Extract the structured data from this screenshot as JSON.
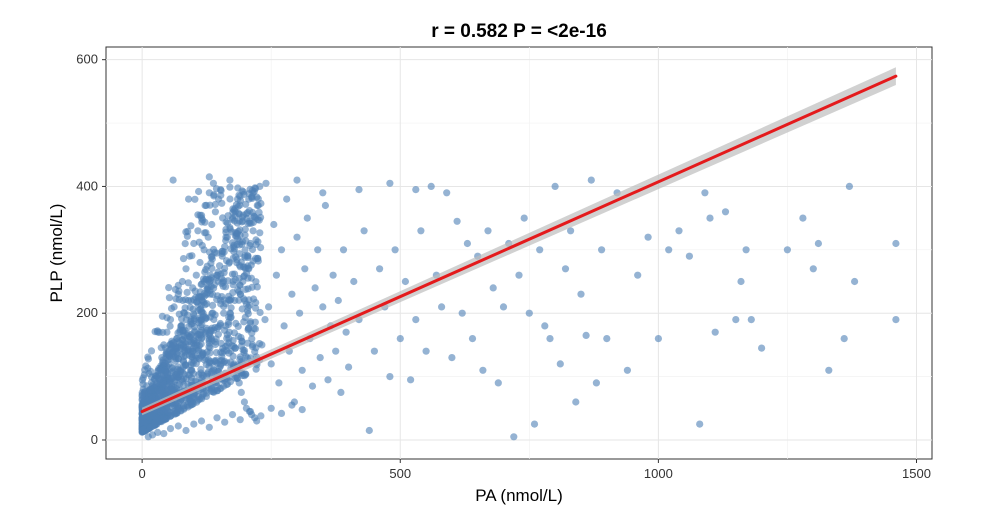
{
  "chart_data": {
    "type": "scatter",
    "title": "r = 0.582 P = <2e-16",
    "xlabel": "PA (nmol/L)",
    "ylabel": "PLP (nmol/L)",
    "xlim": [
      -70,
      1530
    ],
    "ylim": [
      -30,
      620
    ],
    "xticks": [
      0,
      500,
      1000,
      1500
    ],
    "yticks": [
      0,
      200,
      400,
      600
    ],
    "grid": true,
    "point_color": "#4F81B5",
    "line_color": "#E41A1C",
    "band_color": "#BDBDBD",
    "regression": {
      "x": [
        0,
        1460
      ],
      "y": [
        45,
        574
      ],
      "band_halfwidth": [
        6,
        14
      ]
    },
    "points": [
      [
        5,
        15
      ],
      [
        8,
        22
      ],
      [
        10,
        30
      ],
      [
        12,
        18
      ],
      [
        15,
        40
      ],
      [
        18,
        55
      ],
      [
        20,
        28
      ],
      [
        22,
        70
      ],
      [
        25,
        35
      ],
      [
        28,
        90
      ],
      [
        30,
        60
      ],
      [
        32,
        110
      ],
      [
        35,
        45
      ],
      [
        38,
        130
      ],
      [
        40,
        80
      ],
      [
        42,
        150
      ],
      [
        45,
        100
      ],
      [
        48,
        170
      ],
      [
        50,
        65
      ],
      [
        52,
        120
      ],
      [
        55,
        190
      ],
      [
        58,
        85
      ],
      [
        60,
        140
      ],
      [
        62,
        210
      ],
      [
        65,
        95
      ],
      [
        68,
        160
      ],
      [
        70,
        230
      ],
      [
        72,
        110
      ],
      [
        75,
        180
      ],
      [
        78,
        250
      ],
      [
        80,
        125
      ],
      [
        82,
        200
      ],
      [
        85,
        270
      ],
      [
        88,
        140
      ],
      [
        90,
        220
      ],
      [
        92,
        290
      ],
      [
        95,
        155
      ],
      [
        98,
        240
      ],
      [
        100,
        310
      ],
      [
        102,
        170
      ],
      [
        105,
        260
      ],
      [
        108,
        330
      ],
      [
        110,
        185
      ],
      [
        112,
        280
      ],
      [
        115,
        350
      ],
      [
        118,
        200
      ],
      [
        120,
        300
      ],
      [
        122,
        370
      ],
      [
        125,
        215
      ],
      [
        128,
        320
      ],
      [
        130,
        390
      ],
      [
        132,
        230
      ],
      [
        135,
        340
      ],
      [
        138,
        405
      ],
      [
        140,
        245
      ],
      [
        142,
        360
      ],
      [
        145,
        260
      ],
      [
        148,
        380
      ],
      [
        150,
        275
      ],
      [
        152,
        395
      ],
      [
        155,
        290
      ],
      [
        158,
        200
      ],
      [
        160,
        305
      ],
      [
        162,
        180
      ],
      [
        165,
        320
      ],
      [
        168,
        160
      ],
      [
        170,
        335
      ],
      [
        172,
        140
      ],
      [
        175,
        350
      ],
      [
        178,
        120
      ],
      [
        180,
        365
      ],
      [
        182,
        100
      ],
      [
        185,
        380
      ],
      [
        188,
        90
      ],
      [
        190,
        230
      ],
      [
        192,
        75
      ],
      [
        195,
        250
      ],
      [
        198,
        60
      ],
      [
        200,
        270
      ],
      [
        202,
        50
      ],
      [
        205,
        290
      ],
      [
        208,
        45
      ],
      [
        210,
        310
      ],
      [
        212,
        40
      ],
      [
        215,
        330
      ],
      [
        218,
        35
      ],
      [
        220,
        350
      ],
      [
        222,
        30
      ],
      [
        225,
        370
      ],
      [
        228,
        400
      ],
      [
        232,
        150
      ],
      [
        238,
        190
      ],
      [
        245,
        210
      ],
      [
        250,
        120
      ],
      [
        255,
        340
      ],
      [
        260,
        260
      ],
      [
        265,
        90
      ],
      [
        270,
        300
      ],
      [
        275,
        180
      ],
      [
        280,
        380
      ],
      [
        285,
        140
      ],
      [
        290,
        230
      ],
      [
        295,
        60
      ],
      [
        300,
        320
      ],
      [
        305,
        200
      ],
      [
        310,
        110
      ],
      [
        315,
        270
      ],
      [
        320,
        350
      ],
      [
        325,
        160
      ],
      [
        330,
        85
      ],
      [
        335,
        240
      ],
      [
        340,
        300
      ],
      [
        345,
        130
      ],
      [
        350,
        210
      ],
      [
        355,
        370
      ],
      [
        360,
        95
      ],
      [
        365,
        180
      ],
      [
        370,
        260
      ],
      [
        375,
        140
      ],
      [
        380,
        220
      ],
      [
        385,
        75
      ],
      [
        390,
        300
      ],
      [
        395,
        170
      ],
      [
        400,
        115
      ],
      [
        410,
        250
      ],
      [
        420,
        190
      ],
      [
        430,
        330
      ],
      [
        440,
        15
      ],
      [
        450,
        140
      ],
      [
        460,
        270
      ],
      [
        470,
        210
      ],
      [
        480,
        100
      ],
      [
        490,
        300
      ],
      [
        500,
        160
      ],
      [
        510,
        250
      ],
      [
        520,
        95
      ],
      [
        530,
        190
      ],
      [
        540,
        330
      ],
      [
        550,
        140
      ],
      [
        560,
        400
      ],
      [
        570,
        260
      ],
      [
        580,
        210
      ],
      [
        590,
        390
      ],
      [
        600,
        130
      ],
      [
        610,
        345
      ],
      [
        620,
        200
      ],
      [
        630,
        310
      ],
      [
        640,
        160
      ],
      [
        650,
        290
      ],
      [
        660,
        110
      ],
      [
        670,
        330
      ],
      [
        680,
        240
      ],
      [
        690,
        90
      ],
      [
        700,
        210
      ],
      [
        710,
        310
      ],
      [
        720,
        5
      ],
      [
        730,
        260
      ],
      [
        740,
        350
      ],
      [
        750,
        200
      ],
      [
        760,
        25
      ],
      [
        770,
        300
      ],
      [
        780,
        180
      ],
      [
        790,
        160
      ],
      [
        800,
        400
      ],
      [
        810,
        120
      ],
      [
        820,
        270
      ],
      [
        830,
        330
      ],
      [
        840,
        60
      ],
      [
        850,
        230
      ],
      [
        860,
        165
      ],
      [
        870,
        410
      ],
      [
        880,
        90
      ],
      [
        890,
        300
      ],
      [
        900,
        160
      ],
      [
        920,
        390
      ],
      [
        940,
        110
      ],
      [
        960,
        260
      ],
      [
        980,
        320
      ],
      [
        1000,
        160
      ],
      [
        1020,
        300
      ],
      [
        1040,
        330
      ],
      [
        1060,
        290
      ],
      [
        1080,
        25
      ],
      [
        1090,
        390
      ],
      [
        1100,
        350
      ],
      [
        1110,
        170
      ],
      [
        1130,
        360
      ],
      [
        1150,
        190
      ],
      [
        1160,
        250
      ],
      [
        1170,
        300
      ],
      [
        1180,
        190
      ],
      [
        1200,
        145
      ],
      [
        1250,
        300
      ],
      [
        1280,
        350
      ],
      [
        1300,
        270
      ],
      [
        1310,
        310
      ],
      [
        1330,
        110
      ],
      [
        1360,
        160
      ],
      [
        1370,
        400
      ],
      [
        1380,
        250
      ],
      [
        1460,
        310
      ],
      [
        1460,
        190
      ],
      [
        60,
        410
      ],
      [
        90,
        380
      ],
      [
        130,
        415
      ],
      [
        170,
        410
      ],
      [
        240,
        405
      ],
      [
        300,
        410
      ],
      [
        350,
        390
      ],
      [
        420,
        395
      ],
      [
        480,
        405
      ],
      [
        530,
        395
      ],
      [
        12,
        5
      ],
      [
        20,
        8
      ],
      [
        30,
        12
      ],
      [
        42,
        10
      ],
      [
        55,
        18
      ],
      [
        70,
        22
      ],
      [
        85,
        15
      ],
      [
        100,
        25
      ],
      [
        115,
        30
      ],
      [
        130,
        20
      ],
      [
        145,
        35
      ],
      [
        160,
        28
      ],
      [
        175,
        40
      ],
      [
        190,
        32
      ],
      [
        210,
        45
      ],
      [
        230,
        38
      ],
      [
        250,
        50
      ],
      [
        270,
        42
      ],
      [
        290,
        55
      ],
      [
        310,
        48
      ]
    ]
  }
}
